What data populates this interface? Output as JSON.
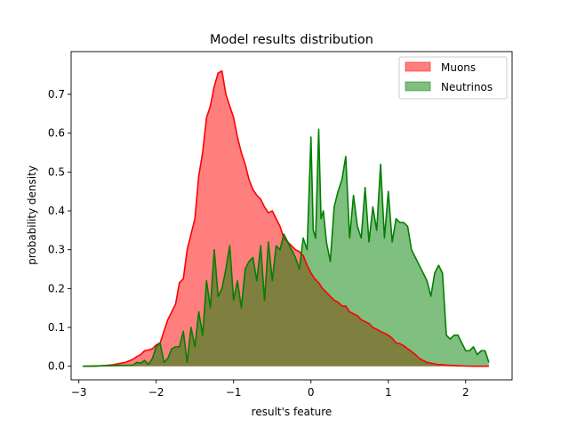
{
  "chart_data": {
    "type": "area",
    "title": "Model results distribution",
    "xlabel": "result's feature",
    "ylabel": "probability density",
    "xlim": [
      -3.1,
      2.6
    ],
    "ylim": [
      -0.035,
      0.81
    ],
    "xticks": [
      -3,
      -2,
      -1,
      0,
      1,
      2
    ],
    "yticks": [
      0.0,
      0.1,
      0.2,
      0.3,
      0.4,
      0.5,
      0.6,
      0.7
    ],
    "xtick_labels": [
      "−3",
      "−2",
      "−1",
      "0",
      "1",
      "2"
    ],
    "ytick_labels": [
      "0.0",
      "0.1",
      "0.2",
      "0.3",
      "0.4",
      "0.5",
      "0.6",
      "0.7"
    ],
    "grid": false,
    "legend": {
      "position": "top-right"
    },
    "series": [
      {
        "name": "Muons",
        "line_color": "#ff0000",
        "fill_color": "#ff0000",
        "fill_alpha": 0.5,
        "x": [
          -2.95,
          -2.8,
          -2.65,
          -2.55,
          -2.45,
          -2.4,
          -2.35,
          -2.3,
          -2.25,
          -2.2,
          -2.15,
          -2.1,
          -2.05,
          -2.0,
          -1.95,
          -1.9,
          -1.85,
          -1.8,
          -1.75,
          -1.7,
          -1.65,
          -1.6,
          -1.55,
          -1.5,
          -1.45,
          -1.4,
          -1.35,
          -1.3,
          -1.25,
          -1.2,
          -1.15,
          -1.1,
          -1.05,
          -1.0,
          -0.95,
          -0.9,
          -0.85,
          -0.8,
          -0.75,
          -0.7,
          -0.65,
          -0.6,
          -0.55,
          -0.5,
          -0.45,
          -0.4,
          -0.35,
          -0.3,
          -0.25,
          -0.2,
          -0.15,
          -0.1,
          -0.05,
          0.0,
          0.05,
          0.1,
          0.15,
          0.2,
          0.25,
          0.3,
          0.35,
          0.4,
          0.45,
          0.5,
          0.55,
          0.6,
          0.65,
          0.7,
          0.75,
          0.8,
          0.85,
          0.9,
          0.95,
          1.0,
          1.05,
          1.1,
          1.15,
          1.2,
          1.25,
          1.3,
          1.35,
          1.4,
          1.45,
          1.5,
          1.55,
          1.6,
          1.65,
          1.7,
          1.75,
          1.8,
          1.85,
          1.9,
          1.95,
          2.0,
          2.1,
          2.2,
          2.3
        ],
        "y": [
          0.0,
          0.0,
          0.002,
          0.004,
          0.008,
          0.01,
          0.014,
          0.018,
          0.025,
          0.03,
          0.04,
          0.042,
          0.045,
          0.055,
          0.06,
          0.09,
          0.12,
          0.14,
          0.16,
          0.215,
          0.225,
          0.3,
          0.34,
          0.38,
          0.49,
          0.55,
          0.64,
          0.67,
          0.72,
          0.755,
          0.76,
          0.7,
          0.67,
          0.64,
          0.59,
          0.55,
          0.52,
          0.48,
          0.455,
          0.44,
          0.43,
          0.41,
          0.395,
          0.4,
          0.38,
          0.36,
          0.33,
          0.32,
          0.31,
          0.3,
          0.295,
          0.285,
          0.26,
          0.24,
          0.225,
          0.215,
          0.2,
          0.19,
          0.18,
          0.17,
          0.165,
          0.155,
          0.155,
          0.14,
          0.135,
          0.13,
          0.12,
          0.115,
          0.11,
          0.1,
          0.095,
          0.09,
          0.085,
          0.08,
          0.072,
          0.06,
          0.058,
          0.053,
          0.045,
          0.038,
          0.03,
          0.02,
          0.015,
          0.01,
          0.008,
          0.006,
          0.004,
          0.004,
          0.003,
          0.002,
          0.002,
          0.001,
          0.001,
          0.0005,
          0.0,
          0.0,
          0.0
        ]
      },
      {
        "name": "Neutrinos",
        "line_color": "#008000",
        "fill_color": "#008000",
        "fill_alpha": 0.5,
        "x": [
          -2.95,
          -2.5,
          -2.3,
          -2.25,
          -2.2,
          -2.15,
          -2.1,
          -2.05,
          -2.0,
          -1.95,
          -1.9,
          -1.85,
          -1.8,
          -1.75,
          -1.7,
          -1.65,
          -1.6,
          -1.55,
          -1.5,
          -1.45,
          -1.4,
          -1.35,
          -1.3,
          -1.25,
          -1.2,
          -1.15,
          -1.1,
          -1.05,
          -1.0,
          -0.95,
          -0.9,
          -0.85,
          -0.8,
          -0.75,
          -0.7,
          -0.65,
          -0.6,
          -0.55,
          -0.5,
          -0.45,
          -0.4,
          -0.35,
          -0.3,
          -0.25,
          -0.2,
          -0.15,
          -0.1,
          -0.05,
          0.0,
          0.03,
          0.06,
          0.1,
          0.13,
          0.16,
          0.2,
          0.25,
          0.3,
          0.35,
          0.4,
          0.45,
          0.5,
          0.55,
          0.6,
          0.65,
          0.7,
          0.75,
          0.8,
          0.85,
          0.9,
          0.95,
          1.0,
          1.05,
          1.1,
          1.15,
          1.2,
          1.25,
          1.3,
          1.35,
          1.4,
          1.45,
          1.5,
          1.55,
          1.6,
          1.65,
          1.7,
          1.75,
          1.8,
          1.85,
          1.9,
          1.95,
          2.0,
          2.05,
          2.1,
          2.15,
          2.2,
          2.25,
          2.3
        ],
        "y": [
          0.0,
          0.002,
          0.003,
          0.01,
          0.008,
          0.015,
          0.005,
          0.02,
          0.05,
          0.06,
          0.01,
          0.02,
          0.045,
          0.05,
          0.05,
          0.09,
          0.01,
          0.1,
          0.05,
          0.14,
          0.08,
          0.22,
          0.15,
          0.3,
          0.18,
          0.2,
          0.25,
          0.31,
          0.17,
          0.22,
          0.15,
          0.25,
          0.27,
          0.28,
          0.22,
          0.31,
          0.17,
          0.32,
          0.22,
          0.31,
          0.3,
          0.34,
          0.32,
          0.3,
          0.28,
          0.25,
          0.33,
          0.3,
          0.59,
          0.35,
          0.33,
          0.61,
          0.38,
          0.4,
          0.32,
          0.27,
          0.41,
          0.45,
          0.48,
          0.54,
          0.33,
          0.44,
          0.36,
          0.33,
          0.46,
          0.32,
          0.41,
          0.35,
          0.52,
          0.33,
          0.45,
          0.32,
          0.38,
          0.37,
          0.37,
          0.36,
          0.3,
          0.28,
          0.26,
          0.24,
          0.22,
          0.18,
          0.24,
          0.26,
          0.24,
          0.08,
          0.07,
          0.08,
          0.08,
          0.06,
          0.04,
          0.04,
          0.05,
          0.03,
          0.04,
          0.04,
          0.01
        ]
      }
    ]
  }
}
